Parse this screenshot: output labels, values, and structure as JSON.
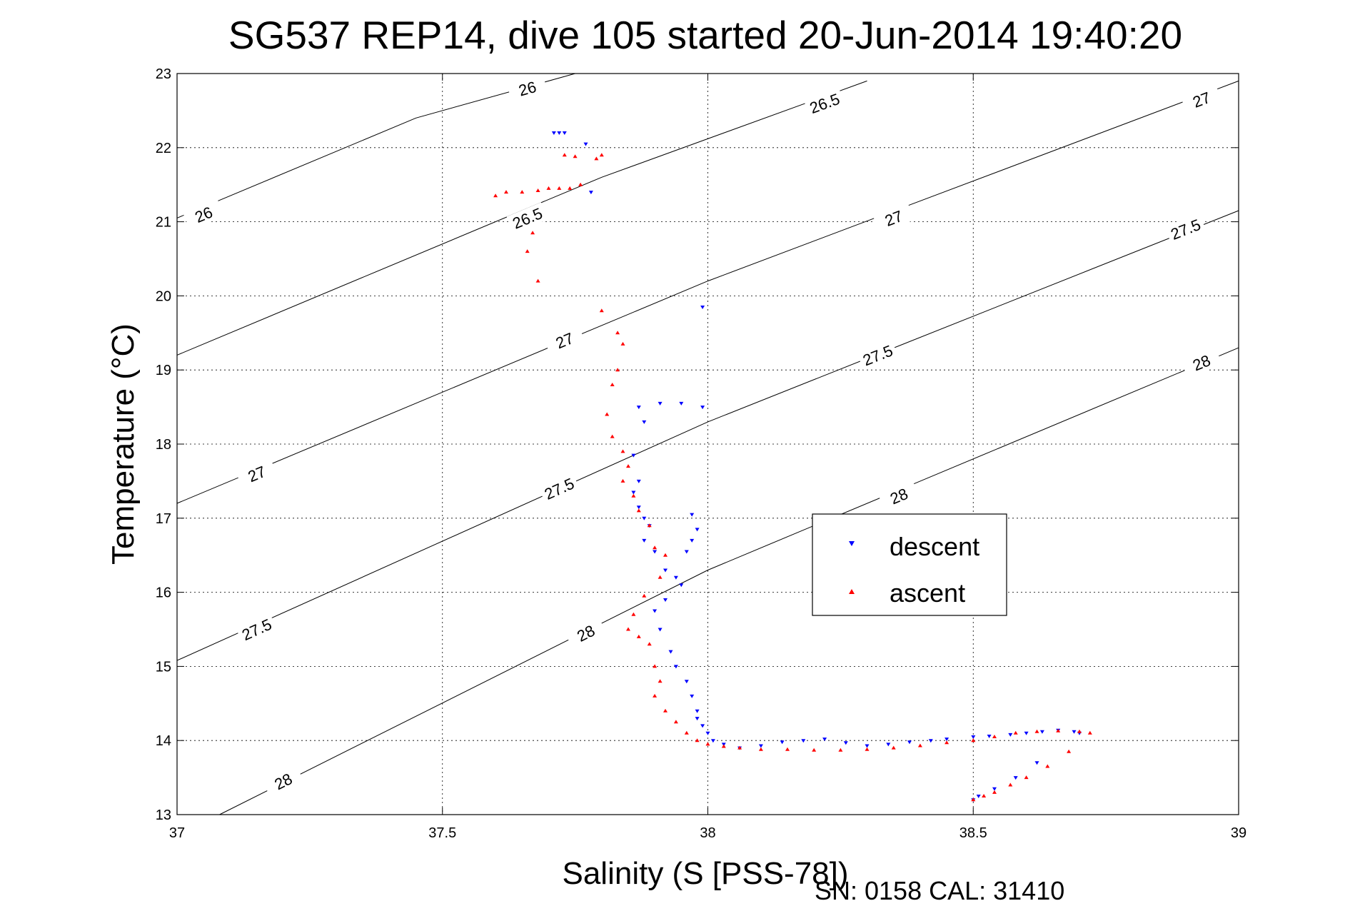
{
  "chart_data": {
    "type": "scatter",
    "title": "SG537 REP14, dive 105 started 20-Jun-2014 19:40:20",
    "xlabel": "Salinity (S [PSS-78])",
    "ylabel": "Temperature (°C)",
    "xlim": [
      37,
      39
    ],
    "ylim": [
      13,
      23
    ],
    "xticks": [
      "37",
      "37.5",
      "38",
      "38.5",
      "39"
    ],
    "yticks": [
      "13",
      "14",
      "15",
      "16",
      "17",
      "18",
      "19",
      "20",
      "21",
      "22",
      "23"
    ],
    "grid": true,
    "legend_position": "right-center",
    "footer": "SN: 0158  CAL: 31410",
    "colors": {
      "descent": "#0000ff",
      "ascent": "#ff0000",
      "isopycnal": "#000000"
    },
    "isopycnals": [
      {
        "label": "26",
        "points": [
          [
            37,
            21.05
          ],
          [
            37.45,
            22.4
          ],
          [
            37.75,
            23.0
          ]
        ],
        "label_at": [
          [
            37.05,
            21.1
          ],
          [
            37.66,
            22.8
          ]
        ]
      },
      {
        "label": "26.5",
        "points": [
          [
            37,
            19.2
          ],
          [
            37.8,
            21.6
          ],
          [
            38.3,
            22.9
          ]
        ],
        "label_at": [
          [
            37.66,
            21.05
          ],
          [
            38.22,
            22.6
          ]
        ]
      },
      {
        "label": "27",
        "points": [
          [
            37,
            17.2
          ],
          [
            38.0,
            20.2
          ],
          [
            39.0,
            22.9
          ]
        ],
        "label_at": [
          [
            37.15,
            17.6
          ],
          [
            37.73,
            19.4
          ],
          [
            38.35,
            21.05
          ],
          [
            38.93,
            22.65
          ]
        ]
      },
      {
        "label": "27.5",
        "points": [
          [
            37,
            15.08
          ],
          [
            38.0,
            18.3
          ],
          [
            39.0,
            21.15
          ]
        ],
        "label_at": [
          [
            37.15,
            15.5
          ],
          [
            37.72,
            17.4
          ],
          [
            38.32,
            19.2
          ],
          [
            38.9,
            20.9
          ]
        ]
      },
      {
        "label": "28",
        "points": [
          [
            37.08,
            13.0
          ],
          [
            38.0,
            16.3
          ],
          [
            39.0,
            19.3
          ]
        ],
        "label_at": [
          [
            37.2,
            13.45
          ],
          [
            37.77,
            15.45
          ],
          [
            38.36,
            17.3
          ],
          [
            38.93,
            19.1
          ]
        ]
      }
    ],
    "series": [
      {
        "name": "descent",
        "marker": "triangle-down",
        "x": [
          37.71,
          37.72,
          37.73,
          37.77,
          37.78,
          37.99,
          37.99,
          37.91,
          37.95,
          37.87,
          37.88,
          37.86,
          37.87,
          37.86,
          37.87,
          37.88,
          37.89,
          37.88,
          37.9,
          37.92,
          37.95,
          37.97,
          37.98,
          37.97,
          37.96,
          37.94,
          37.92,
          37.9,
          37.91,
          37.93,
          37.94,
          37.96,
          37.97,
          37.98,
          37.98,
          37.99,
          38.0,
          38.01,
          38.03,
          38.06,
          38.1,
          38.14,
          38.18,
          38.22,
          38.26,
          38.3,
          38.34,
          38.38,
          38.42,
          38.45,
          38.5,
          38.53,
          38.57,
          38.6,
          38.63,
          38.66,
          38.69,
          38.7,
          38.62,
          38.58,
          38.54,
          38.51,
          38.5
        ],
        "y": [
          22.2,
          22.2,
          22.2,
          22.05,
          21.4,
          19.85,
          18.5,
          18.55,
          18.55,
          18.5,
          18.3,
          17.85,
          17.5,
          17.35,
          17.15,
          17.0,
          16.9,
          16.7,
          16.55,
          16.3,
          16.1,
          17.05,
          16.85,
          16.7,
          16.55,
          16.2,
          15.9,
          15.75,
          15.5,
          15.2,
          15.0,
          14.8,
          14.6,
          14.4,
          14.3,
          14.2,
          14.1,
          14.0,
          13.95,
          13.9,
          13.93,
          13.98,
          14.0,
          14.02,
          13.97,
          13.93,
          13.95,
          13.98,
          14.0,
          14.02,
          14.05,
          14.06,
          14.08,
          14.1,
          14.12,
          14.14,
          14.12,
          14.1,
          13.7,
          13.5,
          13.35,
          13.25,
          13.2
        ]
      },
      {
        "name": "ascent",
        "marker": "triangle-up",
        "x": [
          37.6,
          37.62,
          37.65,
          37.68,
          37.7,
          37.72,
          37.74,
          37.76,
          37.79,
          37.8,
          37.73,
          37.75,
          37.67,
          37.66,
          37.68,
          37.8,
          37.83,
          37.84,
          37.83,
          37.82,
          37.81,
          37.82,
          37.84,
          37.85,
          37.84,
          37.86,
          37.87,
          37.89,
          37.9,
          37.92,
          37.91,
          37.88,
          37.86,
          37.85,
          37.87,
          37.89,
          37.9,
          37.91,
          37.9,
          37.92,
          37.94,
          37.96,
          37.98,
          38.0,
          38.03,
          38.06,
          38.1,
          38.15,
          38.2,
          38.25,
          38.3,
          38.35,
          38.4,
          38.45,
          38.5,
          38.54,
          38.58,
          38.62,
          38.66,
          38.7,
          38.72,
          38.68,
          38.64,
          38.6,
          38.57,
          38.54,
          38.52,
          38.5
        ],
        "y": [
          21.35,
          21.4,
          21.4,
          21.42,
          21.45,
          21.45,
          21.45,
          21.5,
          21.85,
          21.9,
          21.9,
          21.88,
          20.85,
          20.6,
          20.2,
          19.8,
          19.5,
          19.35,
          19.0,
          18.8,
          18.4,
          18.1,
          17.9,
          17.7,
          17.5,
          17.3,
          17.1,
          16.9,
          16.6,
          16.5,
          16.2,
          15.95,
          15.7,
          15.5,
          15.4,
          15.3,
          15.0,
          14.8,
          14.6,
          14.4,
          14.25,
          14.1,
          14.0,
          13.95,
          13.92,
          13.9,
          13.88,
          13.88,
          13.87,
          13.87,
          13.88,
          13.9,
          13.93,
          13.97,
          14.0,
          14.05,
          14.1,
          14.12,
          14.13,
          14.12,
          14.1,
          13.85,
          13.65,
          13.5,
          13.4,
          13.3,
          13.25,
          13.2
        ]
      }
    ]
  }
}
